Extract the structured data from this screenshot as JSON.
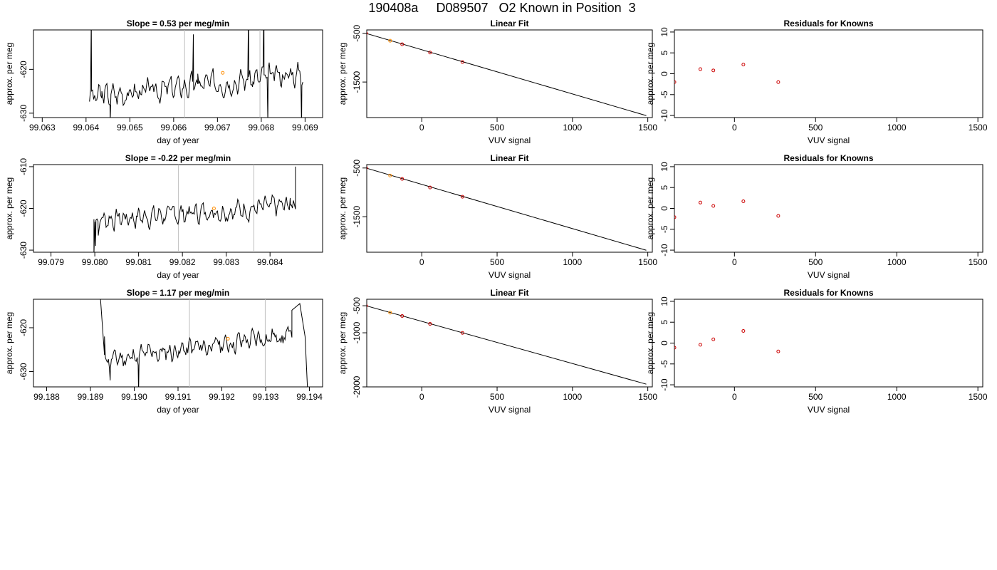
{
  "title": "190408a     D089507   O2 Known in Position  3",
  "colors": {
    "trace": "#000000",
    "known_point": "#ff8c00",
    "residual_point": "#cc0000",
    "marker_line": "#bebebe",
    "fit_line": "#000000"
  },
  "chart_data": [
    {
      "type": "line",
      "row": 1,
      "col": 1,
      "title": "Slope =  0.53  per meg/min",
      "xlabel": "day of year",
      "ylabel": "approx. per meg",
      "xlim": [
        99.0628,
        99.0694
      ],
      "ylim": [
        -631,
        -611
      ],
      "xticks": [
        "99.063",
        "99.064",
        "99.065",
        "99.066",
        "99.067",
        "99.068",
        "99.069"
      ],
      "yticks": [
        "-630",
        "-620"
      ],
      "ytick_values": [
        -630,
        -620
      ],
      "vlines": [
        99.06625,
        99.06797
      ],
      "highlight": {
        "x": 99.06712,
        "y": -620.8
      },
      "series": [
        {
          "x_start": 99.06408,
          "x_end": 99.06895,
          "n": 210,
          "base": -626.4,
          "trend": 5.6,
          "amp": 1.7,
          "seed": 3
        }
      ],
      "spikes": [
        {
          "x": 99.06412,
          "y": -608
        },
        {
          "x": 99.06436,
          "y": -625
        },
        {
          "x": 99.06455,
          "y": -632
        },
        {
          "x": 99.06645,
          "y": -612
        },
        {
          "x": 99.06655,
          "y": -621
        },
        {
          "x": 99.06771,
          "y": -605
        },
        {
          "x": 99.0678,
          "y": -624
        },
        {
          "x": 99.06806,
          "y": -604
        },
        {
          "x": 99.06815,
          "y": -632
        },
        {
          "x": 99.06892,
          "y": -633
        }
      ]
    },
    {
      "type": "scatter",
      "row": 1,
      "col": 2,
      "title": "Linear Fit",
      "xlabel": "VUV signal",
      "ylabel": "approx. per meg",
      "xlim": [
        -365,
        1530
      ],
      "ylim": [
        -2230,
        -430
      ],
      "xticks": [
        "0",
        "500",
        "1000",
        "1500"
      ],
      "xtick_values": [
        0,
        500,
        1000,
        1500
      ],
      "yticks": [
        "-500",
        "-1500"
      ],
      "ytick_values": [
        -500,
        -1500
      ],
      "fit_line": {
        "x": [
          -370,
          1490
        ],
        "y": [
          -500,
          -2190
        ]
      },
      "points": {
        "x": [
          -370,
          -210,
          -130,
          55,
          270
        ],
        "y": [
          -500,
          -652,
          -725,
          -895,
          -1090
        ]
      },
      "highlight": {
        "x": -210,
        "y": -652
      }
    },
    {
      "type": "scatter",
      "row": 1,
      "col": 3,
      "title": "Residuals for Knowns",
      "xlabel": "VUV signal",
      "ylabel": "approx. per meg",
      "xlim": [
        -370,
        1530
      ],
      "ylim": [
        -10.5,
        10.5
      ],
      "xticks": [
        "0",
        "500",
        "1000",
        "1500"
      ],
      "xtick_values": [
        0,
        500,
        1000,
        1500
      ],
      "yticks": [
        "-10",
        "-5",
        "0",
        "5",
        "10"
      ],
      "ytick_values": [
        -10,
        -5,
        0,
        5,
        10
      ],
      "points": {
        "x": [
          -370,
          -210,
          -130,
          55,
          270
        ],
        "y": [
          -2.0,
          1.1,
          0.8,
          2.2,
          -2.0
        ]
      }
    },
    {
      "type": "line",
      "row": 2,
      "col": 1,
      "title": "Slope =  -0.22  per meg/min",
      "xlabel": "day of year",
      "ylabel": "approx. per meg",
      "xlim": [
        99.0786,
        99.0852
      ],
      "ylim": [
        -630.5,
        -609.5
      ],
      "xticks": [
        "99.079",
        "99.080",
        "99.081",
        "99.082",
        "99.083",
        "99.084"
      ],
      "yticks": [
        "-630",
        "-620",
        "-610"
      ],
      "ytick_values": [
        -630,
        -620,
        -610
      ],
      "vlines": [
        99.08191,
        99.08363
      ],
      "highlight": {
        "x": 99.08272,
        "y": -620.0
      },
      "series": [
        {
          "x_start": 99.07998,
          "x_end": 99.08458,
          "n": 200,
          "base": -622.8,
          "trend": 3.5,
          "amp": 1.6,
          "seed": 7
        }
      ],
      "spikes": [
        {
          "x": 99.07998,
          "y": -631
        },
        {
          "x": 99.08002,
          "y": -629
        },
        {
          "x": 99.08008,
          "y": -626.5
        },
        {
          "x": 99.08446,
          "y": -617.5
        },
        {
          "x": 99.08458,
          "y": -610
        }
      ]
    },
    {
      "type": "scatter",
      "row": 2,
      "col": 2,
      "title": "Linear Fit",
      "xlabel": "VUV signal",
      "ylabel": "approx. per meg",
      "xlim": [
        -365,
        1530
      ],
      "ylim": [
        -2230,
        -430
      ],
      "xticks": [
        "0",
        "500",
        "1000",
        "1500"
      ],
      "xtick_values": [
        0,
        500,
        1000,
        1500
      ],
      "yticks": [
        "-500",
        "-1500"
      ],
      "ytick_values": [
        -500,
        -1500
      ],
      "fit_line": {
        "x": [
          -370,
          1490
        ],
        "y": [
          -500,
          -2190
        ]
      },
      "points": {
        "x": [
          -370,
          -210,
          -130,
          55,
          270
        ],
        "y": [
          -500,
          -655,
          -725,
          -900,
          -1090
        ]
      },
      "highlight": {
        "x": -210,
        "y": -655
      }
    },
    {
      "type": "scatter",
      "row": 2,
      "col": 3,
      "title": "Residuals for Knowns",
      "xlabel": "VUV signal",
      "ylabel": "approx. per meg",
      "xlim": [
        -370,
        1530
      ],
      "ylim": [
        -10.5,
        10.5
      ],
      "xticks": [
        "0",
        "500",
        "1000",
        "1500"
      ],
      "xtick_values": [
        0,
        500,
        1000,
        1500
      ],
      "yticks": [
        "-10",
        "-5",
        "0",
        "5",
        "10"
      ],
      "ytick_values": [
        -10,
        -5,
        0,
        5,
        10
      ],
      "points": {
        "x": [
          -370,
          -210,
          -130,
          55,
          270
        ],
        "y": [
          -2.1,
          1.4,
          0.6,
          1.7,
          -1.8
        ]
      }
    },
    {
      "type": "line",
      "row": 3,
      "col": 1,
      "title": "Slope =  1.17  per meg/min",
      "xlabel": "day of year",
      "ylabel": "approx. per meg",
      "xlim": [
        99.1877,
        99.1943
      ],
      "ylim": [
        -633.5,
        -613.5
      ],
      "xticks": [
        "99.188",
        "99.189",
        "99.190",
        "99.191",
        "99.192",
        "99.193",
        "99.194"
      ],
      "yticks": [
        "-630",
        "-620"
      ],
      "ytick_values": [
        -630,
        -620
      ],
      "vlines": [
        99.19126,
        99.19299
      ],
      "highlight": {
        "x": 99.19214,
        "y": -622.5
      },
      "series": [
        {
          "x_start": 99.18932,
          "x_end": 99.1936,
          "n": 190,
          "base": -627.5,
          "trend": 6.0,
          "amp": 1.6,
          "seed": 11
        }
      ],
      "spikes": [
        {
          "x": 99.18922,
          "y": -612
        },
        {
          "x": 99.18932,
          "y": -622
        },
        {
          "x": 99.18945,
          "y": -632
        },
        {
          "x": 99.1901,
          "y": -635
        },
        {
          "x": 99.1936,
          "y": -616
        },
        {
          "x": 99.19378,
          "y": -614.5
        },
        {
          "x": 99.1939,
          "y": -622
        },
        {
          "x": 99.19396,
          "y": -635
        }
      ]
    },
    {
      "type": "scatter",
      "row": 3,
      "col": 2,
      "title": "Linear Fit",
      "xlabel": "VUV signal",
      "ylabel": "approx. per meg",
      "xlim": [
        -365,
        1530
      ],
      "ylim": [
        -2000,
        -380
      ],
      "xticks": [
        "0",
        "500",
        "1000",
        "1500"
      ],
      "xtick_values": [
        0,
        500,
        1000,
        1500
      ],
      "yticks": [
        "-500",
        "-1000",
        "-2000"
      ],
      "ytick_values": [
        -500,
        -1000,
        -2000
      ],
      "fit_line": {
        "x": [
          -370,
          1490
        ],
        "y": [
          -500,
          -1950
        ]
      },
      "points": {
        "x": [
          -370,
          -210,
          -130,
          55,
          270
        ],
        "y": [
          -500,
          -628,
          -690,
          -835,
          -1002
        ]
      },
      "highlight": {
        "x": -210,
        "y": -628
      }
    },
    {
      "type": "scatter",
      "row": 3,
      "col": 3,
      "title": "Residuals for Knowns",
      "xlabel": "VUV signal",
      "ylabel": "approx. per meg",
      "xlim": [
        -370,
        1530
      ],
      "ylim": [
        -10.5,
        10.5
      ],
      "xticks": [
        "0",
        "500",
        "1000",
        "1500"
      ],
      "xtick_values": [
        0,
        500,
        1000,
        1500
      ],
      "yticks": [
        "-10",
        "-5",
        "0",
        "5",
        "10"
      ],
      "ytick_values": [
        -10,
        -5,
        0,
        5,
        10
      ],
      "points": {
        "x": [
          -370,
          -210,
          -130,
          55,
          270
        ],
        "y": [
          -1.1,
          -0.4,
          0.9,
          2.9,
          -2.0
        ]
      }
    }
  ]
}
